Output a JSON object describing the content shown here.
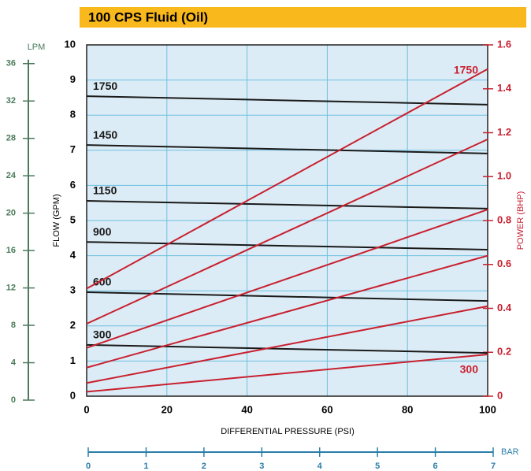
{
  "chart_data": {
    "type": "line",
    "title": "100 CPS Fluid (Oil)",
    "xlabel": "DIFFERENTIAL PRESSURE  (PSI)",
    "ylabel": "FLOW  (GPM)",
    "y2label": "POWER  (BHP)",
    "x": [
      0,
      100
    ],
    "xlim": [
      0,
      100
    ],
    "xticks": [
      0,
      20,
      40,
      60,
      80,
      100
    ],
    "ylim": [
      0,
      10
    ],
    "yticks": [
      0,
      1,
      2,
      3,
      4,
      5,
      6,
      7,
      8,
      9,
      10
    ],
    "y2lim": [
      0,
      1.6
    ],
    "y2ticks": [
      0,
      0.2,
      0.4,
      0.6,
      0.8,
      {
        "value": 1,
        "label": "1.0"
      },
      1.2,
      1.4,
      1.6
    ],
    "grid": true,
    "lpm_label": "LPM",
    "lpm_lim": [
      0,
      38
    ],
    "lpm_ticks": [
      0,
      4,
      8,
      12,
      16,
      20,
      24,
      28,
      32,
      36
    ],
    "bar_label": "BAR",
    "bar_lim": [
      0,
      7
    ],
    "bar_ticks": [
      0,
      1,
      2,
      3,
      4,
      5,
      6,
      7
    ],
    "series": [
      {
        "name": "1750",
        "color": "#1a1a1a",
        "values": [
          8.54,
          8.3
        ]
      },
      {
        "name": "1450",
        "color": "#1a1a1a",
        "values": [
          7.15,
          6.91
        ]
      },
      {
        "name": "1150",
        "color": "#1a1a1a",
        "values": [
          5.56,
          5.34
        ]
      },
      {
        "name": "900",
        "color": "#1a1a1a",
        "values": [
          4.39,
          4.17
        ]
      },
      {
        "name": "600",
        "color": "#1a1a1a",
        "values": [
          2.96,
          2.71
        ]
      },
      {
        "name": "300",
        "color": "#1a1a1a",
        "values": [
          1.46,
          1.23
        ]
      },
      {
        "name": "1750",
        "color": "#c8202f",
        "axis": "y2",
        "values": [
          0.49,
          1.49
        ]
      },
      {
        "color": "#c8202f",
        "axis": "y2",
        "values": [
          0.33,
          1.17
        ]
      },
      {
        "color": "#c8202f",
        "axis": "y2",
        "values": [
          0.22,
          0.85
        ]
      },
      {
        "color": "#c8202f",
        "axis": "y2",
        "values": [
          0.13,
          0.64
        ]
      },
      {
        "color": "#c8202f",
        "axis": "y2",
        "values": [
          0.06,
          0.41
        ]
      },
      {
        "name": "300",
        "color": "#c8202f",
        "axis": "y2",
        "values": [
          0.02,
          0.19
        ]
      }
    ]
  }
}
